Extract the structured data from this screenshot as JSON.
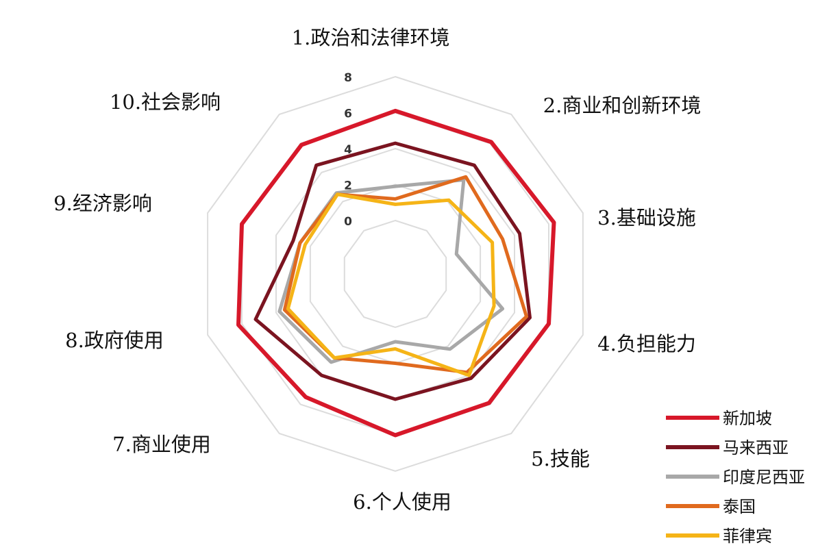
{
  "chart_data": {
    "type": "radar",
    "categories": [
      "1.政治和法律环境",
      "2.商业和创新环境",
      "3.基础设施",
      "4.负担能力",
      "5.技能",
      "6.个人使用",
      "7.商业使用",
      "8.政府使用",
      "9.经济影响",
      "10.社会影响"
    ],
    "rlim": [
      0,
      8
    ],
    "ticks": [
      "0",
      "2",
      "4",
      "6",
      "8"
    ],
    "grid": true,
    "legend_position": "bottom-right",
    "series": [
      {
        "name": "新加坡",
        "color": "#d7182a",
        "values": [
          6.1,
          6.1,
          6.3,
          6.0,
          5.9,
          6.0,
          5.5,
          6.2,
          6.0,
          5.9
        ]
      },
      {
        "name": "马来西亚",
        "color": "#7b1420",
        "values": [
          4.3,
          4.5,
          4.3,
          4.9,
          4.2,
          4.0,
          4.0,
          5.2,
          3.0,
          4.5
        ]
      },
      {
        "name": "印度尼西亚",
        "color": "#a8a8a8",
        "values": [
          1.9,
          3.5,
          0.6,
          3.3,
          2.2,
          0.8,
          3.1,
          3.8,
          2.6,
          2.6
        ]
      },
      {
        "name": "泰国",
        "color": "#e06a1e",
        "values": [
          1.2,
          3.7,
          3.3,
          4.7,
          3.8,
          2.0,
          2.8,
          3.5,
          2.6,
          2.5
        ]
      },
      {
        "name": "菲律宾",
        "color": "#f5b417",
        "values": [
          0.9,
          2.1,
          2.7,
          2.8,
          4.0,
          1.2,
          2.8,
          3.3,
          2.3,
          2.5
        ]
      }
    ]
  }
}
